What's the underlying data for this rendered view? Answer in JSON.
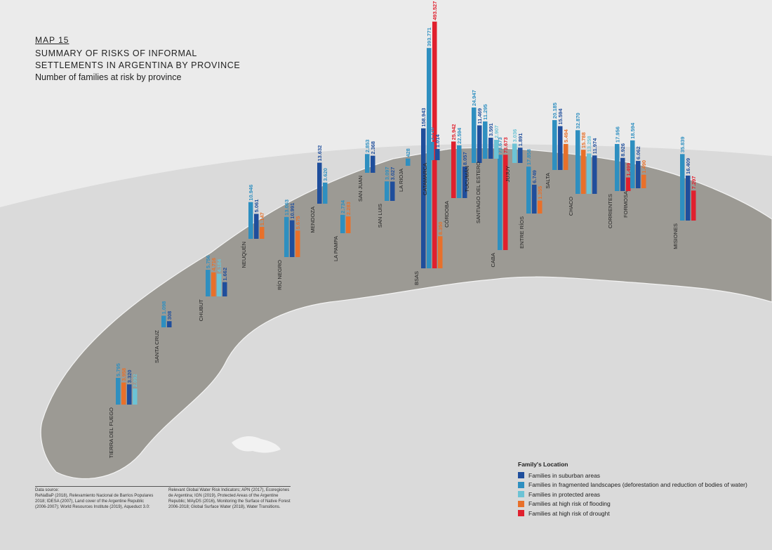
{
  "header": {
    "map_number": "MAP 15",
    "title_lines": [
      "SUMMARY OF RISKS OF INFORMAL",
      "SETTLEMENTS IN ARGENTINA BY PROVINCE"
    ],
    "subtitle": "Number of families at risk by province"
  },
  "provinces": [
    {
      "name": "BSAS",
      "bars": [
        {
          "value": 158943,
          "label": "158.943",
          "color": "#1f4e9c"
        },
        {
          "value": 393771,
          "label": "393.771",
          "color": "#2e8fc0"
        },
        {
          "value": 493527,
          "label": "493.527",
          "color": "#e0202e"
        },
        {
          "value": 8350,
          "label": "8.350",
          "color": "#e8702a"
        }
      ]
    },
    {
      "name": "CABA",
      "bars": [
        {
          "value": 73673,
          "label": "73.673",
          "color": "#2e8fc0"
        },
        {
          "value": 73673,
          "label": "73.673",
          "color": "#e0202e"
        }
      ]
    },
    {
      "name": "CATAMARCA",
      "bars": [
        {
          "value": 2720,
          "label": "2.720",
          "color": "#2e8fc0"
        },
        {
          "value": 1014,
          "label": "1.014",
          "color": "#1f4e9c"
        }
      ]
    },
    {
      "name": "CÓRDOBA",
      "bars": [
        {
          "value": 25942,
          "label": "25.942",
          "color": "#e0202e"
        },
        {
          "value": 22594,
          "label": "22.594",
          "color": "#2e8fc0"
        },
        {
          "value": 8057,
          "label": "8.057",
          "color": "#1f4e9c"
        }
      ]
    },
    {
      "name": "TUCUMÁN",
      "bars": [
        {
          "value": 24947,
          "label": "24.947",
          "color": "#2e8fc0"
        },
        {
          "value": 11469,
          "label": "11.469",
          "color": "#1f4e9c"
        }
      ]
    },
    {
      "name": "SANTIAGO DEL ESTERO",
      "bars": [
        {
          "value": 11295,
          "label": "11.295",
          "color": "#2e8fc0"
        },
        {
          "value": 3591,
          "label": "3.591",
          "color": "#1f4e9c"
        },
        {
          "value": 2907,
          "label": "2.907",
          "color": "#6cc3d5"
        }
      ]
    },
    {
      "name": "JUJUY",
      "bars": [
        {
          "value": 3036,
          "label": "3.036",
          "color": "#6cc3d5"
        },
        {
          "value": 1891,
          "label": "1.891",
          "color": "#1f4e9c"
        }
      ]
    },
    {
      "name": "SALTA",
      "bars": [
        {
          "value": 20185,
          "label": "20.185",
          "color": "#2e8fc0"
        },
        {
          "value": 15594,
          "label": "15.594",
          "color": "#1f4e9c"
        },
        {
          "value": 5494,
          "label": "5.494",
          "color": "#e8702a"
        }
      ]
    },
    {
      "name": "CHACO",
      "bars": [
        {
          "value": 32870,
          "label": "32.870",
          "color": "#2e8fc0"
        },
        {
          "value": 15788,
          "label": "15.788",
          "color": "#e8702a"
        },
        {
          "value": 13258,
          "label": "13.258",
          "color": "#6cc3d5"
        },
        {
          "value": 11974,
          "label": "11.974",
          "color": "#1f4e9c"
        }
      ]
    },
    {
      "name": "CORRIENTES",
      "bars": [
        {
          "value": 17956,
          "label": "17.956",
          "color": "#2e8fc0"
        },
        {
          "value": 8926,
          "label": "8.926",
          "color": "#1f4e9c"
        },
        {
          "value": 1499,
          "label": "1.499",
          "color": "#e0202e"
        }
      ]
    },
    {
      "name": "FORMOSA",
      "bars": [
        {
          "value": 18594,
          "label": "18.594",
          "color": "#2e8fc0"
        },
        {
          "value": 6062,
          "label": "6.062",
          "color": "#1f4e9c"
        },
        {
          "value": 1490,
          "label": "1.490",
          "color": "#e8702a"
        }
      ]
    },
    {
      "name": "MISIONES",
      "bars": [
        {
          "value": 35839,
          "label": "35.839",
          "color": "#2e8fc0"
        },
        {
          "value": 16409,
          "label": "16.409",
          "color": "#1f4e9c"
        },
        {
          "value": 7297,
          "label": "7.297",
          "color": "#e0202e"
        }
      ]
    },
    {
      "name": "ENTRE RÍOS",
      "bars": [
        {
          "value": 17858,
          "label": "17.858",
          "color": "#2e8fc0"
        },
        {
          "value": 6749,
          "label": "6.749",
          "color": "#1f4e9c"
        },
        {
          "value": 1355,
          "label": "1.355",
          "color": "#e8702a"
        }
      ]
    },
    {
      "name": "NEUQUÉN",
      "bars": [
        {
          "value": 10946,
          "label": "10.946",
          "color": "#2e8fc0"
        },
        {
          "value": 5061,
          "label": "5.061",
          "color": "#1f4e9c"
        },
        {
          "value": 1147,
          "label": "1.147",
          "color": "#e8702a"
        }
      ]
    },
    {
      "name": "MENDOZA",
      "bars": [
        {
          "value": 13632,
          "label": "13.632",
          "color": "#1f4e9c"
        },
        {
          "value": 3620,
          "label": "3.620",
          "color": "#2e8fc0"
        }
      ]
    },
    {
      "name": "SAN JUAN",
      "bars": [
        {
          "value": 2853,
          "label": "2.853",
          "color": "#2e8fc0"
        },
        {
          "value": 2368,
          "label": "2.368",
          "color": "#1f4e9c"
        }
      ]
    },
    {
      "name": "LA RIOJA",
      "bars": [
        {
          "value": 428,
          "label": "428",
          "color": "#2e8fc0"
        }
      ]
    },
    {
      "name": "SAN LUIS",
      "bars": [
        {
          "value": 3097,
          "label": "3.097",
          "color": "#2e8fc0"
        },
        {
          "value": 3027,
          "label": "3.027",
          "color": "#1f4e9c"
        }
      ]
    },
    {
      "name": "LA PAMPA",
      "bars": [
        {
          "value": 2734,
          "label": "2.734",
          "color": "#2e8fc0"
        },
        {
          "value": 2283,
          "label": "2.283",
          "color": "#e8702a"
        }
      ]
    },
    {
      "name": "RÍO NEGRO",
      "bars": [
        {
          "value": 13063,
          "label": "13.063",
          "color": "#2e8fc0"
        },
        {
          "value": 10991,
          "label": "10.991",
          "color": "#1f4e9c"
        },
        {
          "value": 5675,
          "label": "5.675",
          "color": "#e8702a"
        }
      ]
    },
    {
      "name": "CHUBUT",
      "bars": [
        {
          "value": 5756,
          "label": "5.756",
          "color": "#2e8fc0"
        },
        {
          "value": 4716,
          "label": "4.716",
          "color": "#e8702a"
        },
        {
          "value": 4184,
          "label": "4.184",
          "color": "#6cc3d5"
        },
        {
          "value": 1662,
          "label": "1.662",
          "color": "#1f4e9c"
        }
      ]
    },
    {
      "name": "SANTA CRUZ",
      "bars": [
        {
          "value": 1098,
          "label": "1.098",
          "color": "#2e8fc0"
        },
        {
          "value": 308,
          "label": "308",
          "color": "#1f4e9c"
        }
      ]
    },
    {
      "name": "TIERRA DEL FUEGO",
      "bars": [
        {
          "value": 5795,
          "label": "5.795",
          "color": "#2e8fc0"
        },
        {
          "value": 3958,
          "label": "3.958",
          "color": "#e8702a"
        },
        {
          "value": 3320,
          "label": "3.320",
          "color": "#1f4e9c"
        },
        {
          "value": 2092,
          "label": "2.092",
          "color": "#6cc3d5"
        }
      ]
    }
  ],
  "legend": {
    "title": "Family's Location",
    "items": [
      {
        "label": "Families in suburban areas",
        "color": "#1f4e9c"
      },
      {
        "label": "Families in fragmented landscapes (deforestation and reduction of bodies of water)",
        "color": "#2e8fc0"
      },
      {
        "label": "Families in protected areas",
        "color": "#6cc3d5"
      },
      {
        "label": "Families at high risk of flooding",
        "color": "#e8702a"
      },
      {
        "label": "Families at high risk of drought",
        "color": "#e0202e"
      }
    ]
  },
  "source": {
    "heading": "Data source:",
    "text_1": "ReNaBaP (2018), Relevamiento Nacional de Barrios Populares 2018; IDESA (2007), Land cover of the Argentine Republic (2006-2007); World Resources Institute (2019), Aqueduct 3.0:",
    "text_2": "Relevant Global Water Risk Indicators; APN (2017), Ecoregiones de Argentina; IGN (2019), Protected Areas of the Argentine Republic; MAyDS (2016), Monitoring the Surface of Native Forest 2006-2018; Global Surface Water (2018), Water Transitions."
  }
}
